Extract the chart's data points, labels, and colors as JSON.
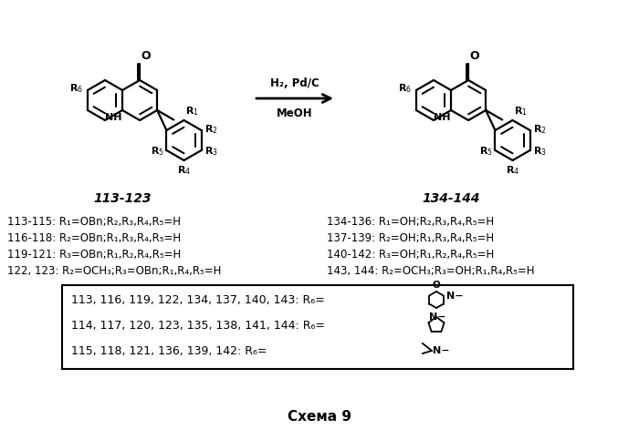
{
  "title": "Схема 9",
  "background": "#ffffff",
  "line1_left": "113-115: R₁=OBn;R₂,R₃,R₄,R₅=H",
  "line2_left": "116-118: R₂=OBn;R₁,R₃,R₄,R₅=H",
  "line3_left": "119-121: R₃=OBn;R₁,R₂,R₄,R₅=H",
  "line4_left": "122, 123: R₂=OCH₃;R₃=OBn;R₁,R₄,R₅=H",
  "line1_right": "134-136: R₁=OH;R₂,R₃,R₄,R₅=H",
  "line2_right": "137-139: R₂=OH;R₁,R₃,R₄,R₅=H",
  "line3_right": "140-142: R₃=OH;R₁,R₂,R₄,R₅=H",
  "line4_right": "143, 144: R₂=OCH₃;R₃=OH;R₁,R₄,R₅=H",
  "label_left": "113-123",
  "label_right": "134-144",
  "reaction_top": "H₂, Pd/C",
  "reaction_bot": "MeOH",
  "box_line1": "113, 116, 119, 122, 134, 137, 140, 143: R₆=",
  "box_line2": "114, 117, 120, 123, 135, 138, 141, 144: R₆=",
  "box_line3": "115, 118, 121, 136, 139, 142: R₆="
}
